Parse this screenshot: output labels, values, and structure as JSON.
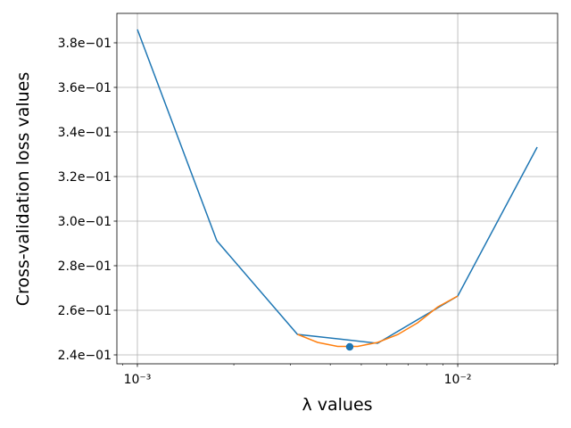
{
  "chart_data": {
    "type": "line",
    "x_label": "λ values",
    "y_label": "Cross-validation loss values",
    "xscale": "log",
    "grid": true,
    "xlim": [
      0.000863,
      0.0205
    ],
    "ylim": [
      0.236,
      0.3932
    ],
    "xticks": [
      {
        "value": 0.001,
        "label": "10⁻³"
      },
      {
        "value": 0.01,
        "label": "10⁻²"
      }
    ],
    "xminorticks": [
      0.0009,
      0.002,
      0.003,
      0.004,
      0.005,
      0.006,
      0.007,
      0.008,
      0.009,
      0.02
    ],
    "yticks": [
      {
        "value": 0.24,
        "label": "2.4e−01"
      },
      {
        "value": 0.26,
        "label": "2.6e−01"
      },
      {
        "value": 0.28,
        "label": "2.8e−01"
      },
      {
        "value": 0.3,
        "label": "3.0e−01"
      },
      {
        "value": 0.32,
        "label": "3.2e−01"
      },
      {
        "value": 0.34,
        "label": "3.4e−01"
      },
      {
        "value": 0.36,
        "label": "3.6e−01"
      },
      {
        "value": 0.38,
        "label": "3.8e−01"
      }
    ],
    "series": [
      {
        "type": "line",
        "color": "#1f77b4",
        "x": [
          0.001,
          0.00177,
          0.00316,
          0.00562,
          0.01,
          0.0177
        ],
        "values": [
          0.386,
          0.2912,
          0.2492,
          0.2452,
          0.2664,
          0.3332
        ]
      },
      {
        "type": "line",
        "color": "#ff7f0e",
        "x": [
          0.003162,
          0.003652,
          0.004217,
          0.00487,
          0.005623,
          0.006494,
          0.007499,
          0.00866,
          0.01
        ],
        "values": [
          0.2492,
          0.2456,
          0.2438,
          0.2438,
          0.2456,
          0.2491,
          0.2544,
          0.2615,
          0.2664
        ]
      },
      {
        "type": "scatter",
        "color": "#1f77b4",
        "x": [
          0.0046
        ],
        "values": [
          0.2436
        ]
      }
    ]
  }
}
